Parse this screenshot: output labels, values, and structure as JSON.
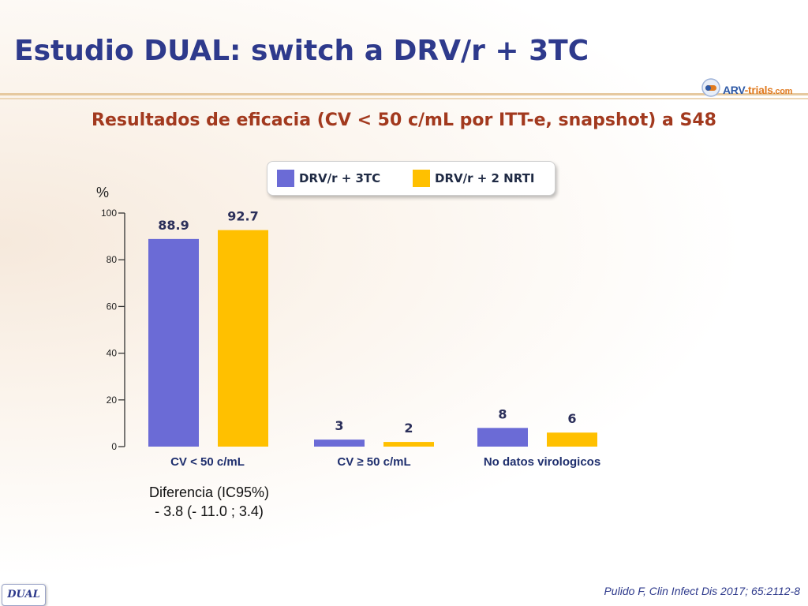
{
  "slide": {
    "title": "Estudio DUAL: switch a DRV/r + 3TC",
    "subtitle": "Resultados de eficacia (CV < 50 c/mL por ITT-e, snapshot) a S48",
    "logo": {
      "name": "ARV",
      "middle": "-trials",
      "suffix": ".com"
    },
    "difference": {
      "label": "Diferencia (IC95%)",
      "value": "- 3.8 (- 11.0 ; 3.4)"
    },
    "badge": "DUAL",
    "citation": "Pulido F, Clin Infect Dis 2017; 65:2112-8"
  },
  "chart_data": {
    "type": "bar",
    "ylabel": "%",
    "ylim": [
      0,
      100
    ],
    "yticks": [
      "0",
      "20",
      "40",
      "60",
      "80",
      "100"
    ],
    "categories": [
      "CV < 50 c/mL",
      "CV ≥ 50 c/mL",
      "No datos virologicos"
    ],
    "series": [
      {
        "name": "DRV/r + 3TC",
        "color": "#6b6bd6",
        "values": [
          88.9,
          3,
          8
        ],
        "labels": [
          "88.9",
          "3",
          "8"
        ]
      },
      {
        "name": "DRV/r + 2 NRTI",
        "color": "#ffc000",
        "values": [
          92.7,
          2,
          6
        ],
        "labels": [
          "92.7",
          "2",
          "6"
        ]
      }
    ],
    "legend_position": "top",
    "grid": false
  }
}
